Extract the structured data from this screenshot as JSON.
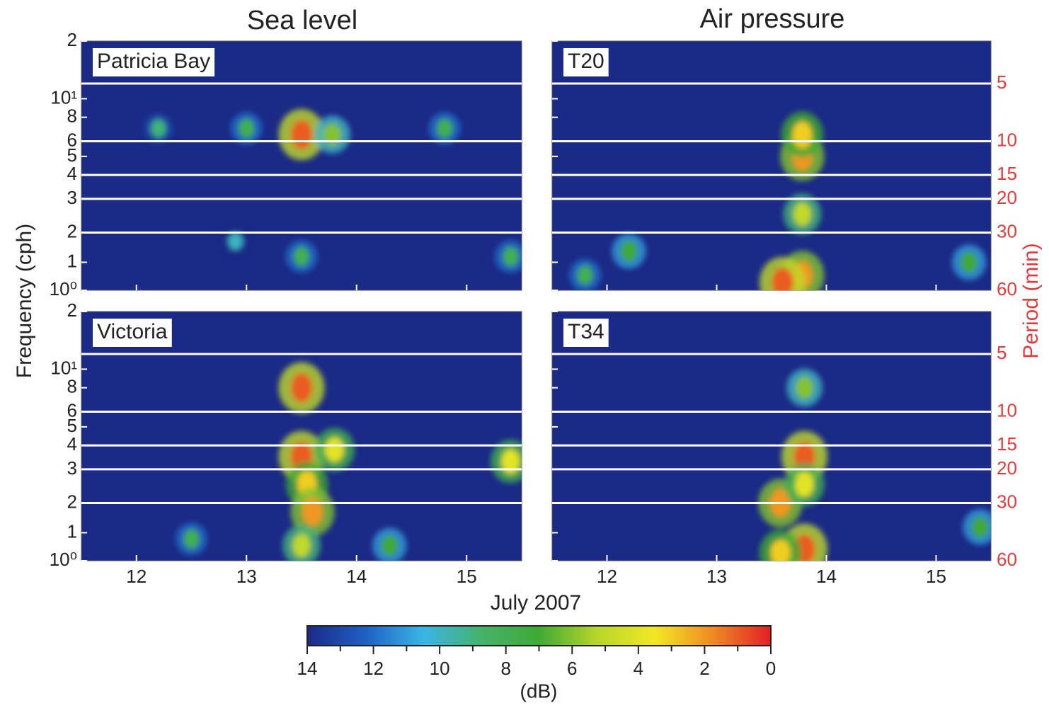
{
  "chart_data": {
    "type": "heatmap",
    "column_titles": [
      "Sea level",
      "Air pressure"
    ],
    "ylabel": "Frequency (cph)",
    "y2label": "Period (min)",
    "xlabel": "July 2007",
    "xlim": [
      11.5,
      15.5
    ],
    "xticks": [
      12,
      13,
      14,
      15
    ],
    "log_y": true,
    "ylim": [
      1,
      20
    ],
    "yticks": [
      {
        "value": 1,
        "label": "10⁰"
      },
      {
        "value": 1.4,
        "label": "1"
      },
      2,
      3,
      4,
      5,
      6,
      8,
      {
        "value": 10,
        "label": "10¹"
      },
      {
        "value": 20,
        "label": "2"
      }
    ],
    "y2lim": [
      60,
      3
    ],
    "y2ticks": [
      60,
      30,
      20,
      15,
      10,
      5
    ],
    "y2color": "#e03c3c",
    "panels": [
      {
        "name": "Patricia Bay",
        "hotspots": [
          {
            "x": 13.5,
            "y": 6.5,
            "value": 1
          },
          {
            "x": 13.78,
            "y": 6.5,
            "value": 6
          },
          {
            "x": 13.0,
            "y": 7,
            "value": 8
          },
          {
            "x": 14.8,
            "y": 7,
            "value": 8
          },
          {
            "x": 12.2,
            "y": 7,
            "value": 9
          },
          {
            "x": 13.5,
            "y": 1.5,
            "value": 8
          },
          {
            "x": 15.4,
            "y": 1.5,
            "value": 8
          },
          {
            "x": 12.9,
            "y": 1.8,
            "value": 10
          }
        ]
      },
      {
        "name": "Victoria",
        "hotspots": [
          {
            "x": 13.5,
            "y": 3.5,
            "value": 1
          },
          {
            "x": 13.55,
            "y": 2.5,
            "value": 3
          },
          {
            "x": 13.6,
            "y": 1.8,
            "value": 2
          },
          {
            "x": 13.5,
            "y": 8,
            "value": 1
          },
          {
            "x": 13.8,
            "y": 3.8,
            "value": 4
          },
          {
            "x": 15.4,
            "y": 3.3,
            "value": 4
          },
          {
            "x": 13.5,
            "y": 1.2,
            "value": 5
          },
          {
            "x": 12.5,
            "y": 1.3,
            "value": 8
          },
          {
            "x": 14.3,
            "y": 1.2,
            "value": 7
          }
        ]
      },
      {
        "name": "T20",
        "hotspots": [
          {
            "x": 13.78,
            "y": 1.2,
            "value": 2
          },
          {
            "x": 13.6,
            "y": 1.1,
            "value": 1
          },
          {
            "x": 13.78,
            "y": 5,
            "value": 2
          },
          {
            "x": 13.78,
            "y": 6.5,
            "value": 3
          },
          {
            "x": 13.78,
            "y": 2.5,
            "value": 5
          },
          {
            "x": 12.2,
            "y": 1.6,
            "value": 7
          },
          {
            "x": 11.8,
            "y": 1.2,
            "value": 8
          },
          {
            "x": 15.3,
            "y": 1.4,
            "value": 7
          }
        ]
      },
      {
        "name": "T34",
        "hotspots": [
          {
            "x": 13.8,
            "y": 1.15,
            "value": 1
          },
          {
            "x": 13.58,
            "y": 1.1,
            "value": 3
          },
          {
            "x": 13.58,
            "y": 2,
            "value": 2
          },
          {
            "x": 13.8,
            "y": 3.5,
            "value": 1
          },
          {
            "x": 13.8,
            "y": 2.5,
            "value": 4
          },
          {
            "x": 15.4,
            "y": 1.5,
            "value": 7
          },
          {
            "x": 13.8,
            "y": 8,
            "value": 6
          }
        ]
      }
    ],
    "colorbar": {
      "lim": [
        14,
        0
      ],
      "ticks": [
        14,
        12,
        10,
        8,
        6,
        4,
        2,
        0
      ],
      "minor_ticks": [
        13,
        11,
        9,
        7,
        5,
        3,
        1
      ],
      "label": "(dB)",
      "colors": [
        "#1b2a86",
        "#1f5fc4",
        "#3ab5e6",
        "#45b36a",
        "#3fa935",
        "#b8d62a",
        "#f2e824",
        "#f08a23",
        "#e21f26"
      ]
    }
  }
}
